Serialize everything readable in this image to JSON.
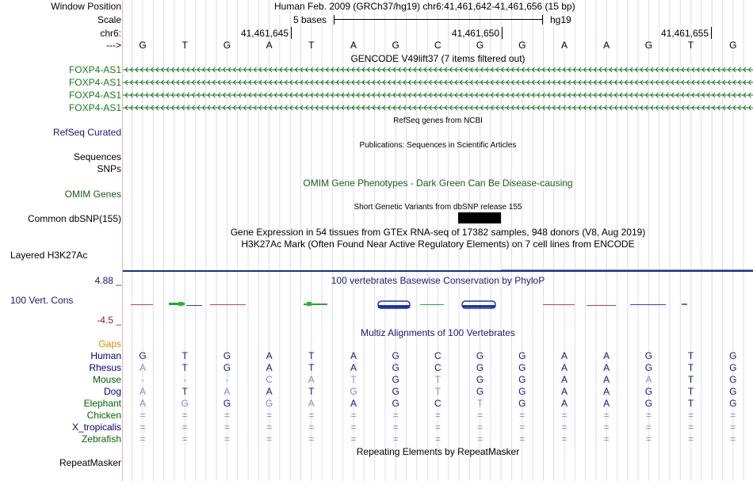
{
  "header": {
    "window_position_label": "Window Position",
    "window_position_text": "Human Feb. 2009 (GRCh37/hg19)   chr6:41,461,642-41,461,656 (15 bp)",
    "scale_label": "Scale",
    "scale_value": "5 bases",
    "scale_assembly": "hg19",
    "chrom_label": "chr6:",
    "strand_label": "--->",
    "positions": [
      "41,461,645",
      "41,461,650",
      "41,461,655"
    ]
  },
  "bases": [
    "G",
    "T",
    "G",
    "A",
    "T",
    "A",
    "G",
    "C",
    "G",
    "G",
    "A",
    "A",
    "G",
    "T",
    "G"
  ],
  "gencode": {
    "title": "GENCODE V49lift37 (7 items filtered out)",
    "genes": [
      "FOXP4-AS1",
      "FOXP4-AS1",
      "FOXP4-AS1",
      "FOXP4-AS1"
    ],
    "color": "#1a7a1a"
  },
  "tracks": {
    "refseq_label": "RefSeq Curated",
    "refseq_title": "RefSeq genes from NCBI",
    "sequences_label": "Sequences",
    "publications_title": "Publications: Sequences in Scientific Articles",
    "snps_label": "SNPs",
    "omim_label": "OMIM Genes",
    "omim_title": "OMIM Gene Phenotypes - Dark Green Can Be Disease-causing",
    "dbsnp_label": "Common dbSNP(155)",
    "dbsnp_title": "Short Genetic Variants from dbSNP release 155",
    "gtex_title": "Gene Expression in 54 tissues from GTEx RNA-seq of 17382 samples, 948 donors (V8, Aug 2019)",
    "h3k27ac_title": "H3K27Ac Mark (Often Found Near Active Regulatory Elements) on 7 cell lines from ENCODE",
    "h3k27ac_label": "Layered H3K27Ac",
    "phylop_title": "100 vertebrates Basewise Conservation by PhyloP",
    "cons_label": "100 Vert. Cons",
    "cons_max": "4.88 _",
    "cons_min": "-4.5 _",
    "multiz_title": "Multiz Alignments of 100 Vertebrates",
    "gaps_label": "Gaps",
    "repeat_title": "Repeating Elements by RepeatMasker",
    "repeat_label": "RepeatMasker"
  },
  "alignment": [
    {
      "species": "Human",
      "color": "#000080",
      "seq": [
        "G",
        "T",
        "G",
        "A",
        "T",
        "A",
        "G",
        "C",
        "G",
        "G",
        "A",
        "A",
        "G",
        "T",
        "G"
      ],
      "dim": []
    },
    {
      "species": "Rhesus",
      "color": "#000080",
      "seq": [
        "A",
        "T",
        "G",
        "A",
        "T",
        "A",
        "G",
        "C",
        "G",
        "G",
        "A",
        "A",
        "G",
        "T",
        "G"
      ],
      "dim": [
        0
      ]
    },
    {
      "species": "Mouse",
      "color": "#006400",
      "seq": [
        "-",
        "-",
        "-",
        "C",
        "A",
        "T",
        "G",
        "T",
        "G",
        "G",
        "A",
        "A",
        "A",
        "T",
        "G"
      ],
      "dim": [
        0,
        1,
        2,
        3,
        4,
        5,
        7,
        12
      ]
    },
    {
      "species": "Dog",
      "color": "#000080",
      "seq": [
        "A",
        "T",
        "A",
        "A",
        "T",
        "G",
        "G",
        "T",
        "G",
        "G",
        "A",
        "A",
        "G",
        "T",
        "G"
      ],
      "dim": [
        0,
        2,
        5,
        7
      ]
    },
    {
      "species": "Elephant",
      "color": "#006400",
      "seq": [
        "A",
        "G",
        "G",
        "G",
        "A",
        "A",
        "G",
        "C",
        "T",
        "G",
        "A",
        "A",
        "G",
        "T",
        "G"
      ],
      "dim": [
        0,
        1,
        3,
        4,
        8
      ]
    },
    {
      "species": "Chicken",
      "color": "#006400",
      "seq": [
        "=",
        "=",
        "=",
        "=",
        "=",
        "=",
        "=",
        "=",
        "=",
        "=",
        "=",
        "=",
        "=",
        "=",
        "="
      ],
      "dim": []
    },
    {
      "species": "X_tropicalis",
      "color": "#000080",
      "seq": [
        "=",
        "=",
        "=",
        "=",
        "=",
        "=",
        "=",
        "=",
        "=",
        "=",
        "=",
        "=",
        "=",
        "=",
        "="
      ],
      "dim": []
    },
    {
      "species": "Zebrafish",
      "color": "#006400",
      "seq": [
        "=",
        "=",
        "=",
        "=",
        "=",
        "=",
        "=",
        "=",
        "=",
        "=",
        "=",
        "=",
        "=",
        "=",
        "="
      ],
      "dim": []
    }
  ],
  "colors": {
    "link_blue": "#191970",
    "omim_green": "#1a5c1a",
    "gaps_orange": "#d98c00",
    "cons_max": "#191970",
    "cons_min": "#8b1a1a",
    "alignment_dim": "#8c8cb4",
    "grid": "#dcdcf0",
    "side_divider": "#e8b4b4"
  }
}
